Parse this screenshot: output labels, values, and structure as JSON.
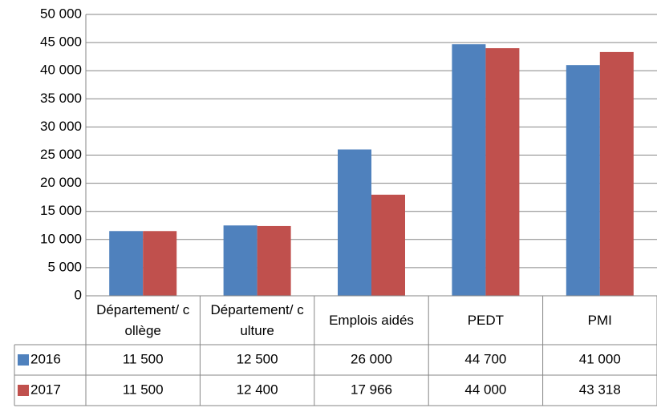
{
  "chart_data": {
    "type": "bar",
    "categories": [
      "Département/ collège",
      "Département/ culture",
      "Emplois aidés",
      "PEDT",
      "PMI"
    ],
    "series": [
      {
        "name": "2016",
        "color": "#4f81bd",
        "values": [
          11500,
          12500,
          26000,
          44700,
          41000
        ],
        "value_labels": [
          "11 500",
          "12 500",
          "26 000",
          "44 700",
          "41 000"
        ]
      },
      {
        "name": "2017",
        "color": "#c0504d",
        "values": [
          11500,
          12400,
          17966,
          44000,
          43318
        ],
        "value_labels": [
          "11 500",
          "12 400",
          "17 966",
          "44 000",
          "43 318"
        ]
      }
    ],
    "ylim": [
      0,
      50000
    ],
    "yticks": [
      {
        "value": 0,
        "label": "0"
      },
      {
        "value": 5000,
        "label": "5 000"
      },
      {
        "value": 10000,
        "label": "10 000"
      },
      {
        "value": 15000,
        "label": "15 000"
      },
      {
        "value": 20000,
        "label": "20 000"
      },
      {
        "value": 25000,
        "label": "25 000"
      },
      {
        "value": 30000,
        "label": "30 000"
      },
      {
        "value": 35000,
        "label": "35 000"
      },
      {
        "value": 40000,
        "label": "40 000"
      },
      {
        "value": 45000,
        "label": "45 000"
      },
      {
        "value": 50000,
        "label": "50 000"
      }
    ],
    "grid": true
  }
}
